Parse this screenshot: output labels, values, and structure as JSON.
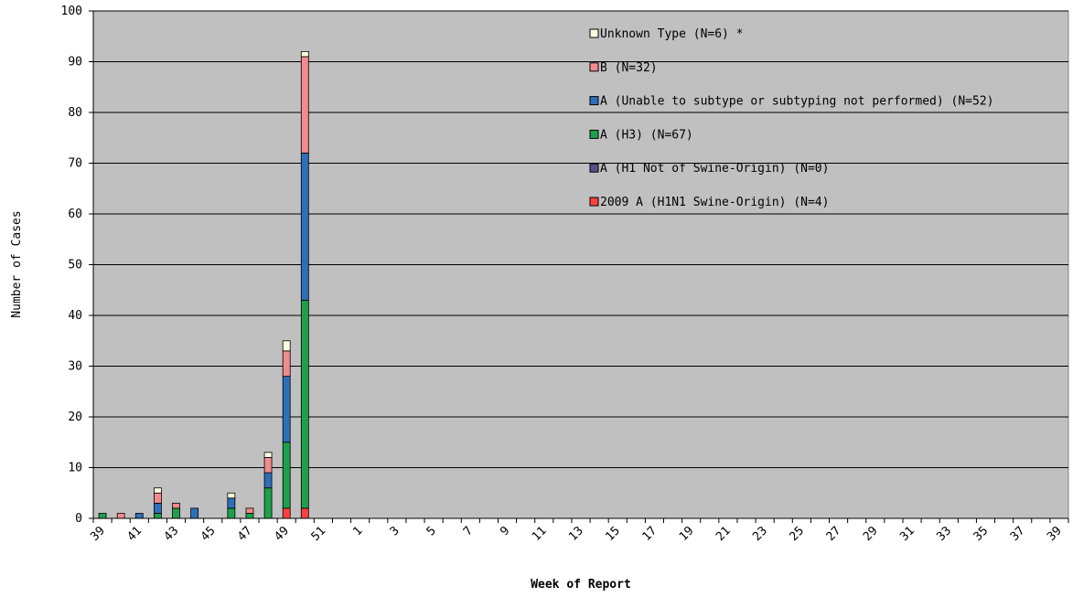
{
  "chart_data": {
    "type": "bar",
    "stacked": true,
    "title": "",
    "xlabel": "Week of Report",
    "ylabel": "Number of Cases",
    "ylim": [
      0,
      100
    ],
    "yticks": [
      0,
      10,
      20,
      30,
      40,
      50,
      60,
      70,
      80,
      90,
      100
    ],
    "grid": true,
    "legend_position": "top-right",
    "categories": [
      "39",
      "40",
      "41",
      "42",
      "43",
      "44",
      "45",
      "46",
      "47",
      "48",
      "49",
      "50",
      "51",
      "52",
      "1",
      "2",
      "3",
      "4",
      "5",
      "6",
      "7",
      "8",
      "9",
      "10",
      "11",
      "12",
      "13",
      "14",
      "15",
      "16",
      "17",
      "18",
      "19",
      "20",
      "21",
      "22",
      "23",
      "24",
      "25",
      "26",
      "27",
      "28",
      "29",
      "30",
      "31",
      "32",
      "33",
      "34",
      "35",
      "36",
      "37",
      "38",
      "39"
    ],
    "tick_labels": [
      "39",
      "41",
      "43",
      "45",
      "47",
      "49",
      "51",
      "1",
      "3",
      "5",
      "7",
      "9",
      "11",
      "13",
      "15",
      "17",
      "19",
      "21",
      "23",
      "25",
      "27",
      "29",
      "31",
      "33",
      "35",
      "37",
      "39"
    ],
    "series": [
      {
        "name": "2009 A (H1N1 Swine-Origin) (N=4)",
        "color": "#ff4040",
        "values": [
          0,
          0,
          0,
          0,
          0,
          0,
          0,
          0,
          0,
          0,
          2,
          2,
          0,
          0,
          0,
          0,
          0,
          0,
          0,
          0,
          0,
          0,
          0,
          0,
          0,
          0,
          0,
          0,
          0,
          0,
          0,
          0,
          0,
          0,
          0,
          0,
          0,
          0,
          0,
          0,
          0,
          0,
          0,
          0,
          0,
          0,
          0,
          0,
          0,
          0,
          0,
          0,
          0
        ]
      },
      {
        "name": "A (H1 Not of Swine-Origin) (N=0)",
        "color": "#5a4f86",
        "values": [
          0,
          0,
          0,
          0,
          0,
          0,
          0,
          0,
          0,
          0,
          0,
          0,
          0,
          0,
          0,
          0,
          0,
          0,
          0,
          0,
          0,
          0,
          0,
          0,
          0,
          0,
          0,
          0,
          0,
          0,
          0,
          0,
          0,
          0,
          0,
          0,
          0,
          0,
          0,
          0,
          0,
          0,
          0,
          0,
          0,
          0,
          0,
          0,
          0,
          0,
          0,
          0,
          0
        ]
      },
      {
        "name": "A (H3) (N=67)",
        "color": "#1ea04a",
        "values": [
          1,
          0,
          0,
          1,
          2,
          0,
          0,
          2,
          1,
          6,
          13,
          41,
          0,
          0,
          0,
          0,
          0,
          0,
          0,
          0,
          0,
          0,
          0,
          0,
          0,
          0,
          0,
          0,
          0,
          0,
          0,
          0,
          0,
          0,
          0,
          0,
          0,
          0,
          0,
          0,
          0,
          0,
          0,
          0,
          0,
          0,
          0,
          0,
          0,
          0,
          0,
          0,
          0
        ]
      },
      {
        "name": "A (Unable to subtype or subtyping not performed) (N=52)",
        "color": "#2e6fb9",
        "values": [
          0,
          0,
          1,
          2,
          0,
          2,
          0,
          2,
          0,
          3,
          13,
          29,
          0,
          0,
          0,
          0,
          0,
          0,
          0,
          0,
          0,
          0,
          0,
          0,
          0,
          0,
          0,
          0,
          0,
          0,
          0,
          0,
          0,
          0,
          0,
          0,
          0,
          0,
          0,
          0,
          0,
          0,
          0,
          0,
          0,
          0,
          0,
          0,
          0,
          0,
          0,
          0,
          0
        ]
      },
      {
        "name": "B (N=32)",
        "color": "#f28b8b",
        "values": [
          0,
          1,
          0,
          2,
          1,
          0,
          0,
          0,
          1,
          3,
          5,
          19,
          0,
          0,
          0,
          0,
          0,
          0,
          0,
          0,
          0,
          0,
          0,
          0,
          0,
          0,
          0,
          0,
          0,
          0,
          0,
          0,
          0,
          0,
          0,
          0,
          0,
          0,
          0,
          0,
          0,
          0,
          0,
          0,
          0,
          0,
          0,
          0,
          0,
          0,
          0,
          0,
          0
        ]
      },
      {
        "name": "Unknown Type (N=6) *",
        "color": "#ffffe0",
        "values": [
          0,
          0,
          0,
          1,
          0,
          0,
          0,
          1,
          0,
          1,
          2,
          1,
          0,
          0,
          0,
          0,
          0,
          0,
          0,
          0,
          0,
          0,
          0,
          0,
          0,
          0,
          0,
          0,
          0,
          0,
          0,
          0,
          0,
          0,
          0,
          0,
          0,
          0,
          0,
          0,
          0,
          0,
          0,
          0,
          0,
          0,
          0,
          0,
          0,
          0,
          0,
          0,
          0
        ]
      }
    ],
    "colors": {
      "plot_background": "#c0c0c0",
      "gridline": "#000000",
      "bar_outline": "#000000"
    }
  }
}
